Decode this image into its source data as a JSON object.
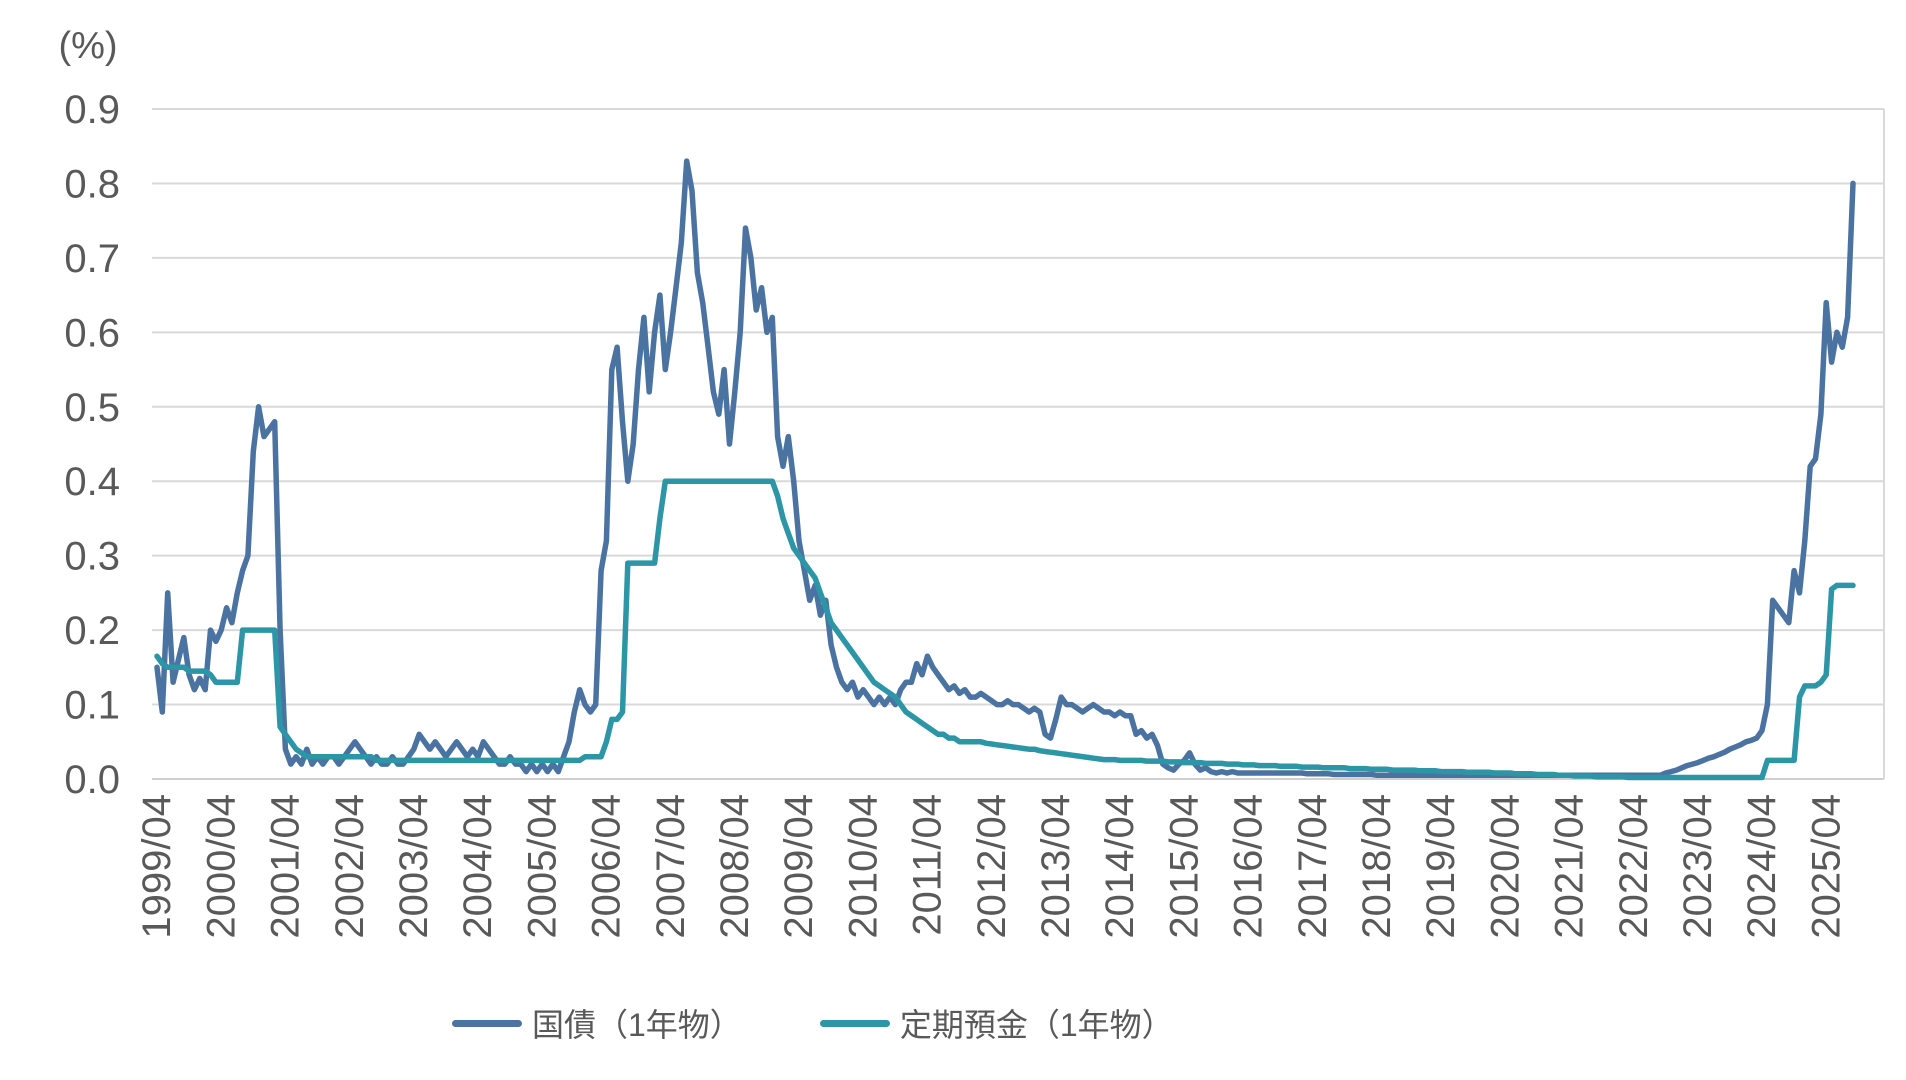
{
  "chart_data": {
    "type": "line",
    "title": "",
    "y_axis_title": "(%)",
    "ylim": [
      0.0,
      0.9
    ],
    "ytick_step": 0.1,
    "grid": true,
    "legend_position": "bottom",
    "x_start": "1999/04",
    "x_end": "2025/09",
    "frequency": "monthly",
    "x_ticks": [
      "1999/04",
      "2000/04",
      "2001/04",
      "2002/04",
      "2003/04",
      "2004/04",
      "2005/04",
      "2006/04",
      "2007/04",
      "2008/04",
      "2009/04",
      "2010/04",
      "2011/04",
      "2012/04",
      "2013/04",
      "2014/04",
      "2015/04",
      "2016/04",
      "2017/04",
      "2018/04",
      "2019/04",
      "2020/04",
      "2021/04",
      "2022/04",
      "2023/04",
      "2024/04",
      "2025/04"
    ],
    "colors": {
      "jgb_1y": "#4a73a1",
      "deposit_1y": "#2d96a6",
      "gridline": "#d9d9d9",
      "axis_line": "#cfcfcf",
      "label_text": "#595959"
    },
    "series": [
      {
        "name": "国債（1年物）",
        "color": "#4a73a1",
        "values": [
          0.15,
          0.09,
          0.25,
          0.13,
          0.16,
          0.19,
          0.14,
          0.12,
          0.135,
          0.12,
          0.2,
          0.185,
          0.2,
          0.23,
          0.21,
          0.25,
          0.28,
          0.3,
          0.44,
          0.5,
          0.46,
          0.47,
          0.48,
          0.2,
          0.04,
          0.02,
          0.03,
          0.02,
          0.04,
          0.02,
          0.03,
          0.02,
          0.03,
          0.03,
          0.02,
          0.03,
          0.04,
          0.05,
          0.04,
          0.03,
          0.02,
          0.03,
          0.02,
          0.02,
          0.03,
          0.02,
          0.02,
          0.03,
          0.04,
          0.06,
          0.05,
          0.04,
          0.05,
          0.04,
          0.03,
          0.04,
          0.05,
          0.04,
          0.03,
          0.04,
          0.03,
          0.05,
          0.04,
          0.03,
          0.02,
          0.02,
          0.03,
          0.02,
          0.02,
          0.01,
          0.02,
          0.01,
          0.02,
          0.01,
          0.02,
          0.01,
          0.03,
          0.05,
          0.09,
          0.12,
          0.1,
          0.09,
          0.1,
          0.28,
          0.32,
          0.55,
          0.58,
          0.48,
          0.4,
          0.45,
          0.55,
          0.62,
          0.52,
          0.6,
          0.65,
          0.55,
          0.6,
          0.66,
          0.72,
          0.83,
          0.79,
          0.68,
          0.64,
          0.58,
          0.52,
          0.49,
          0.55,
          0.45,
          0.52,
          0.6,
          0.74,
          0.7,
          0.63,
          0.66,
          0.6,
          0.62,
          0.46,
          0.42,
          0.46,
          0.4,
          0.32,
          0.28,
          0.24,
          0.26,
          0.22,
          0.24,
          0.18,
          0.15,
          0.13,
          0.12,
          0.13,
          0.11,
          0.12,
          0.11,
          0.1,
          0.11,
          0.1,
          0.11,
          0.1,
          0.12,
          0.13,
          0.13,
          0.155,
          0.14,
          0.165,
          0.15,
          0.14,
          0.13,
          0.12,
          0.125,
          0.115,
          0.12,
          0.11,
          0.11,
          0.115,
          0.11,
          0.105,
          0.1,
          0.1,
          0.105,
          0.1,
          0.1,
          0.095,
          0.09,
          0.095,
          0.09,
          0.06,
          0.055,
          0.08,
          0.11,
          0.1,
          0.1,
          0.095,
          0.09,
          0.095,
          0.1,
          0.095,
          0.09,
          0.09,
          0.085,
          0.09,
          0.085,
          0.085,
          0.06,
          0.065,
          0.055,
          0.06,
          0.045,
          0.02,
          0.015,
          0.012,
          0.02,
          0.025,
          0.035,
          0.02,
          0.012,
          0.015,
          0.01,
          0.008,
          0.01,
          0.008,
          0.01,
          0.008,
          0.008,
          0.008,
          0.008,
          0.008,
          0.008,
          0.008,
          0.008,
          0.008,
          0.008,
          0.008,
          0.008,
          0.008,
          0.007,
          0.007,
          0.007,
          0.007,
          0.007,
          0.006,
          0.006,
          0.006,
          0.006,
          0.006,
          0.006,
          0.006,
          0.006,
          0.005,
          0.005,
          0.005,
          0.005,
          0.005,
          0.005,
          0.005,
          0.005,
          0.005,
          0.005,
          0.005,
          0.005,
          0.005,
          0.005,
          0.005,
          0.005,
          0.005,
          0.005,
          0.005,
          0.005,
          0.005,
          0.005,
          0.005,
          0.005,
          0.005,
          0.005,
          0.005,
          0.005,
          0.005,
          0.005,
          0.005,
          0.005,
          0.005,
          0.005,
          0.005,
          0.005,
          0.005,
          0.005,
          0.005,
          0.005,
          0.005,
          0.005,
          0.005,
          0.005,
          0.005,
          0.005,
          0.005,
          0.005,
          0.005,
          0.005,
          0.005,
          0.005,
          0.005,
          0.005,
          0.008,
          0.01,
          0.012,
          0.015,
          0.018,
          0.02,
          0.022,
          0.025,
          0.028,
          0.03,
          0.033,
          0.036,
          0.04,
          0.043,
          0.046,
          0.05,
          0.052,
          0.055,
          0.065,
          0.1,
          0.24,
          0.23,
          0.22,
          0.21,
          0.28,
          0.25,
          0.32,
          0.42,
          0.43,
          0.49,
          0.64,
          0.56,
          0.6,
          0.58,
          0.62,
          0.8
        ]
      },
      {
        "name": "定期預金（1年物）",
        "color": "#2d96a6",
        "values": [
          0.165,
          0.155,
          0.15,
          0.15,
          0.15,
          0.15,
          0.145,
          0.145,
          0.145,
          0.145,
          0.14,
          0.13,
          0.13,
          0.13,
          0.13,
          0.13,
          0.2,
          0.2,
          0.2,
          0.2,
          0.2,
          0.2,
          0.2,
          0.07,
          0.06,
          0.05,
          0.04,
          0.035,
          0.03,
          0.03,
          0.03,
          0.03,
          0.03,
          0.03,
          0.03,
          0.03,
          0.03,
          0.03,
          0.03,
          0.03,
          0.03,
          0.025,
          0.025,
          0.025,
          0.025,
          0.025,
          0.025,
          0.025,
          0.025,
          0.025,
          0.025,
          0.025,
          0.025,
          0.025,
          0.025,
          0.025,
          0.025,
          0.025,
          0.025,
          0.025,
          0.025,
          0.025,
          0.025,
          0.025,
          0.025,
          0.025,
          0.025,
          0.025,
          0.025,
          0.025,
          0.025,
          0.025,
          0.025,
          0.025,
          0.025,
          0.025,
          0.025,
          0.025,
          0.025,
          0.025,
          0.03,
          0.03,
          0.03,
          0.03,
          0.05,
          0.08,
          0.08,
          0.09,
          0.29,
          0.29,
          0.29,
          0.29,
          0.29,
          0.29,
          0.35,
          0.4,
          0.4,
          0.4,
          0.4,
          0.4,
          0.4,
          0.4,
          0.4,
          0.4,
          0.4,
          0.4,
          0.4,
          0.4,
          0.4,
          0.4,
          0.4,
          0.4,
          0.4,
          0.4,
          0.4,
          0.4,
          0.38,
          0.35,
          0.33,
          0.31,
          0.3,
          0.29,
          0.28,
          0.27,
          0.25,
          0.23,
          0.21,
          0.2,
          0.19,
          0.18,
          0.17,
          0.16,
          0.15,
          0.14,
          0.13,
          0.125,
          0.12,
          0.115,
          0.11,
          0.1,
          0.09,
          0.085,
          0.08,
          0.075,
          0.07,
          0.065,
          0.06,
          0.06,
          0.055,
          0.055,
          0.05,
          0.05,
          0.05,
          0.05,
          0.05,
          0.048,
          0.047,
          0.046,
          0.045,
          0.044,
          0.043,
          0.042,
          0.041,
          0.04,
          0.04,
          0.038,
          0.037,
          0.036,
          0.035,
          0.034,
          0.033,
          0.032,
          0.031,
          0.03,
          0.029,
          0.028,
          0.027,
          0.026,
          0.026,
          0.026,
          0.025,
          0.025,
          0.025,
          0.025,
          0.025,
          0.024,
          0.024,
          0.024,
          0.024,
          0.023,
          0.023,
          0.023,
          0.022,
          0.022,
          0.022,
          0.022,
          0.021,
          0.021,
          0.021,
          0.021,
          0.02,
          0.02,
          0.02,
          0.019,
          0.019,
          0.019,
          0.018,
          0.018,
          0.018,
          0.018,
          0.017,
          0.017,
          0.017,
          0.017,
          0.016,
          0.016,
          0.016,
          0.016,
          0.015,
          0.015,
          0.015,
          0.015,
          0.015,
          0.014,
          0.014,
          0.014,
          0.014,
          0.013,
          0.013,
          0.013,
          0.013,
          0.012,
          0.012,
          0.012,
          0.012,
          0.012,
          0.011,
          0.011,
          0.011,
          0.011,
          0.01,
          0.01,
          0.01,
          0.01,
          0.01,
          0.009,
          0.009,
          0.009,
          0.009,
          0.009,
          0.008,
          0.008,
          0.008,
          0.008,
          0.007,
          0.007,
          0.007,
          0.007,
          0.006,
          0.006,
          0.006,
          0.006,
          0.005,
          0.005,
          0.005,
          0.004,
          0.004,
          0.004,
          0.004,
          0.003,
          0.003,
          0.003,
          0.003,
          0.003,
          0.003,
          0.002,
          0.002,
          0.002,
          0.002,
          0.002,
          0.002,
          0.002,
          0.002,
          0.002,
          0.002,
          0.002,
          0.002,
          0.002,
          0.002,
          0.002,
          0.002,
          0.002,
          0.002,
          0.002,
          0.002,
          0.002,
          0.002,
          0.002,
          0.002,
          0.002,
          0.002,
          0.025,
          0.025,
          0.025,
          0.025,
          0.025,
          0.025,
          0.11,
          0.125,
          0.125,
          0.125,
          0.13,
          0.14,
          0.255,
          0.26,
          0.26,
          0.26,
          0.26
        ]
      }
    ]
  }
}
